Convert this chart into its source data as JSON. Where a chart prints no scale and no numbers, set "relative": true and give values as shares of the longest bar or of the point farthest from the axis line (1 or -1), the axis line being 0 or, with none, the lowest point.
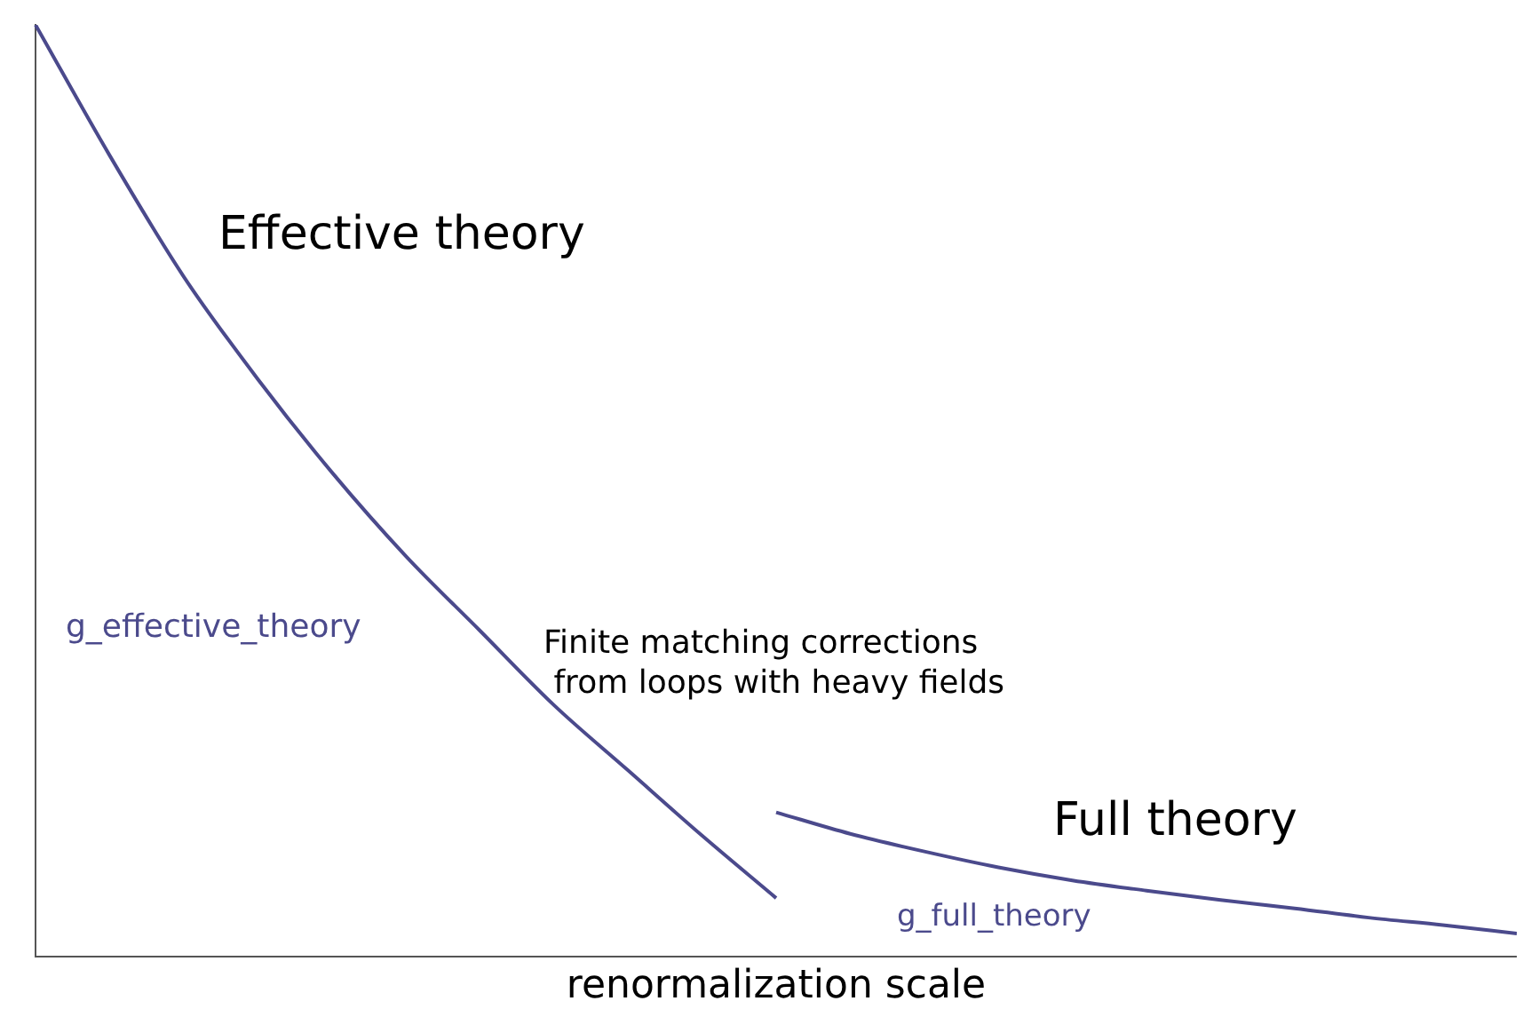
{
  "chart_data": {
    "type": "line",
    "relative": true,
    "xlabel": "renormalization scale",
    "categories": [
      null,
      null,
      null,
      null,
      null,
      null,
      null,
      null,
      null,
      null,
      null,
      null,
      null,
      null,
      null,
      null,
      null,
      null,
      null,
      null,
      null
    ],
    "series": [
      {
        "name": "g_effective_theory",
        "color": "#4b4a8c",
        "values": [
          1,
          0.86,
          0.73,
          0.62,
          0.52,
          0.43,
          0.35,
          0.27,
          0.2,
          0.13,
          0.063,
          null,
          null,
          null,
          null,
          null,
          null,
          null,
          null,
          null,
          null
        ]
      },
      {
        "name": "g_full_theory",
        "color": "#4b4a8c",
        "values": [
          null,
          null,
          null,
          null,
          null,
          null,
          null,
          null,
          null,
          null,
          0.155,
          0.132,
          0.113,
          0.096,
          0.082,
          0.071,
          0.061,
          0.052,
          0.042,
          0.034,
          0.025
        ]
      }
    ],
    "annotations": [
      "Effective theory",
      "Finite matching corrections\n from loops with heavy fields",
      "Full theory"
    ],
    "grid": false,
    "legend": false,
    "marker": "none",
    "line_style": "solid"
  }
}
